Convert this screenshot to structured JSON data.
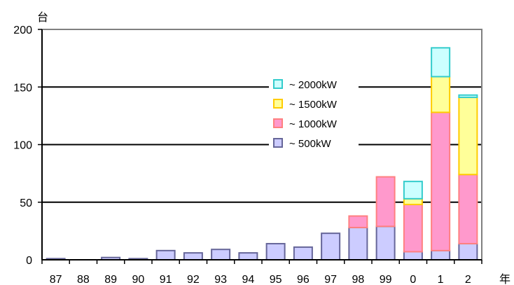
{
  "chart_data": {
    "type": "bar",
    "stacked": true,
    "title": "",
    "xlabel": "年",
    "ylabel": "台",
    "ylim": [
      0,
      200
    ],
    "yticks": [
      0,
      50,
      100,
      150,
      200
    ],
    "grid": true,
    "legend_position": "center-right",
    "categories": [
      "87",
      "88",
      "89",
      "90",
      "91",
      "92",
      "93",
      "94",
      "95",
      "96",
      "97",
      "98",
      "99",
      "0",
      "1",
      "2"
    ],
    "series": [
      {
        "name": "~ 500kW",
        "color": "#ccccff",
        "stroke": "#666699",
        "values": [
          1,
          0,
          2,
          1,
          8,
          6,
          9,
          6,
          14,
          11,
          23,
          28,
          29,
          7,
          8,
          14
        ]
      },
      {
        "name": "~ 1000kW",
        "color": "#ff99cc",
        "stroke": "#ff8080",
        "values": [
          0,
          0,
          0,
          0,
          0,
          0,
          0,
          0,
          0,
          0,
          0,
          10,
          43,
          41,
          120,
          60
        ]
      },
      {
        "name": "~ 1500kW",
        "color": "#ffff99",
        "stroke": "#ffcc00",
        "values": [
          0,
          0,
          0,
          0,
          0,
          0,
          0,
          0,
          0,
          0,
          0,
          0,
          0,
          5,
          31,
          67
        ]
      },
      {
        "name": "~ 2000kW",
        "color": "#ccffff",
        "stroke": "#33cccc",
        "values": [
          0,
          0,
          0,
          0,
          0,
          0,
          0,
          0,
          0,
          0,
          0,
          0,
          0,
          15,
          25,
          2
        ]
      }
    ]
  }
}
